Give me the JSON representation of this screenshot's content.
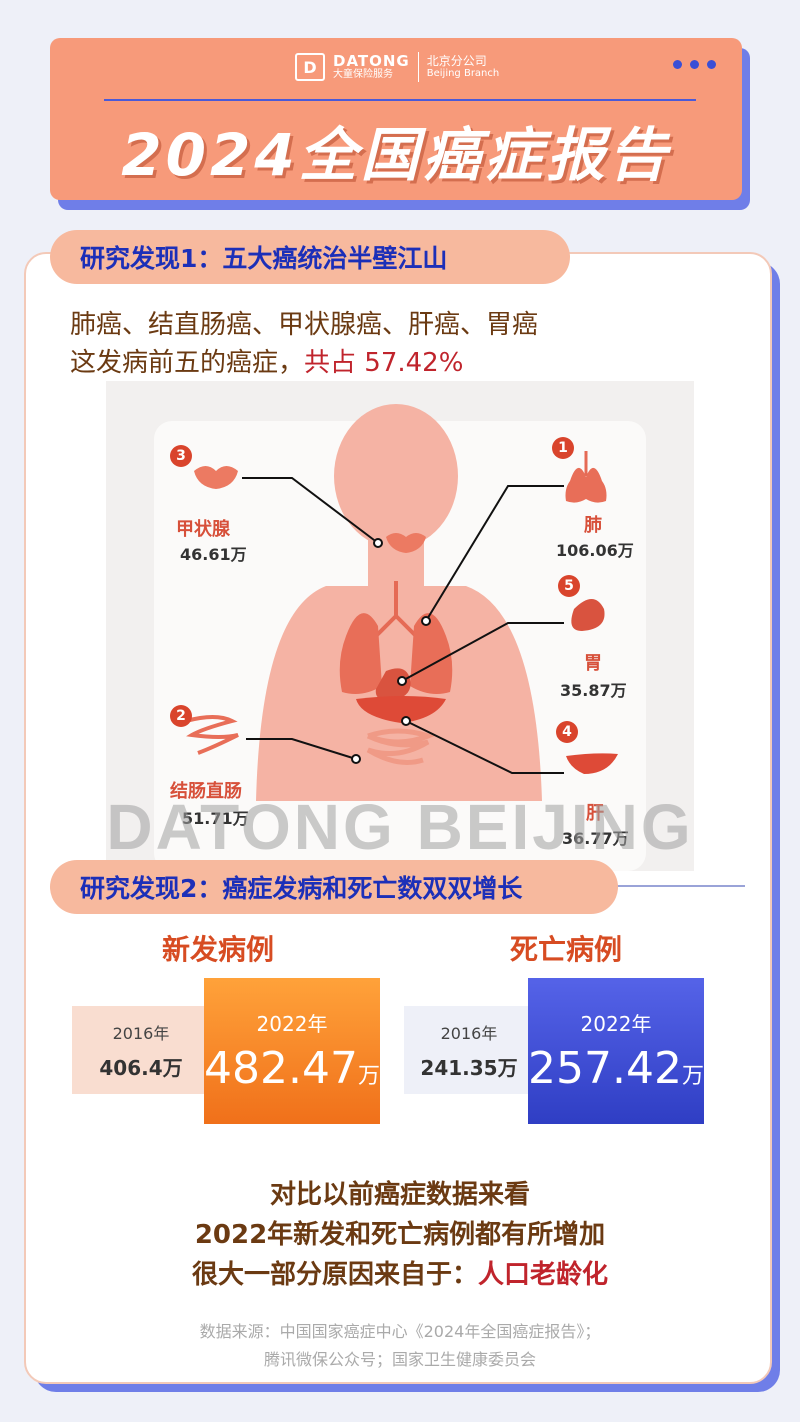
{
  "header": {
    "logo_mark": "D",
    "logo_en": "DATONG",
    "logo_cn": "大童保险服务",
    "branch_cn": "北京分公司",
    "branch_en": "Beijing Branch",
    "title": "2024全国癌症报告"
  },
  "finding1": {
    "title": "研究发现1：五大癌统治半壁江山",
    "intro_line1": "肺癌、结直肠癌、甲状腺癌、肝癌、胃癌",
    "intro_line2_a": "这发病前五的癌症，",
    "intro_line2_b": "共占 57.42%",
    "organs": [
      {
        "rank": "1",
        "name": "肺",
        "value": "106.06万"
      },
      {
        "rank": "2",
        "name": "结肠直肠",
        "value": "51.71万"
      },
      {
        "rank": "3",
        "name": "甲状腺",
        "value": "46.61万"
      },
      {
        "rank": "4",
        "name": "肝",
        "value": "36.77万"
      },
      {
        "rank": "5",
        "name": "胃",
        "value": "35.87万"
      }
    ],
    "watermark": "DATONG BEIJING"
  },
  "finding2": {
    "title": "研究发现2：癌症发病和死亡数双双增长",
    "new_cases": {
      "label": "新发病例",
      "old_year": "2016年",
      "old_value": "406.4万",
      "new_year": "2022年",
      "new_value": "482.47",
      "unit": "万"
    },
    "deaths": {
      "label": "死亡病例",
      "old_year": "2016年",
      "old_value": "241.35万",
      "new_year": "2022年",
      "new_value": "257.42",
      "unit": "万"
    }
  },
  "conclusion": {
    "line1": "对比以前癌症数据来看",
    "line2": "2022年新发和死亡病例都有所增加",
    "line3_a": "很大一部分原因来自于：",
    "line3_b": "人口老龄化"
  },
  "source": {
    "line1": "数据来源：中国国家癌症中心《2024年全国癌症报告》；",
    "line2": "腾讯微保公众号；国家卫生健康委员会"
  },
  "colors": {
    "accent": "#f79a7a",
    "blue": "#3a4fd6",
    "red": "#c0242c"
  }
}
